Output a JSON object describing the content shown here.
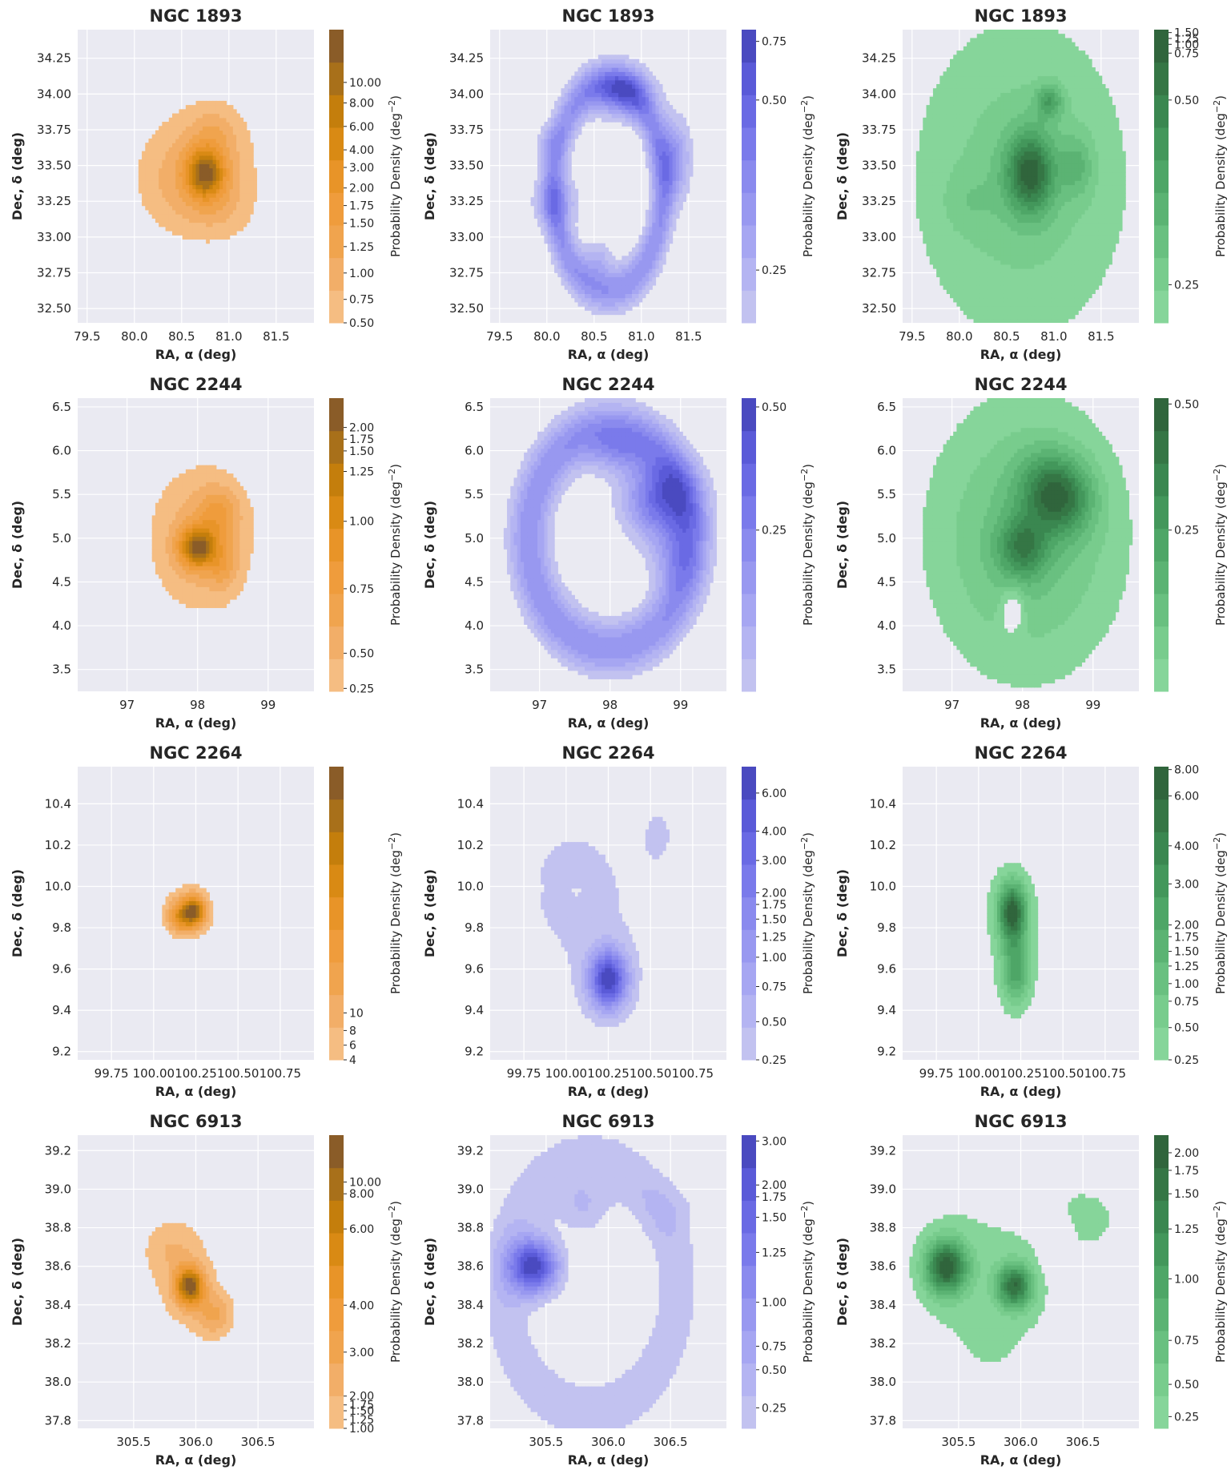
{
  "figure": {
    "colorbar_label": "Probability Density (deg$^{-2}$)",
    "colorbar_label_main": "Probability Density (deg",
    "colorbar_label_sup": "−2",
    "colorbar_label_tail": ")",
    "panel_colors": [
      "#f0a030",
      "#5858e0",
      "#3ea060"
    ]
  },
  "chart_data": [
    {
      "type": "contour",
      "title": "NGC 1893",
      "xlabel": "RA, α (deg)",
      "ylabel": "Dec, δ (deg)",
      "xlim": [
        79.4,
        81.9
      ],
      "ylim": [
        32.4,
        34.45
      ],
      "xticks": [
        "79.5",
        "80.0",
        "80.5",
        "81.0",
        "81.5"
      ],
      "xtick_values": [
        79.5,
        80.0,
        80.5,
        81.0,
        81.5
      ],
      "yticks": [
        "32.50",
        "32.75",
        "33.00",
        "33.25",
        "33.50",
        "33.75",
        "34.00",
        "34.25"
      ],
      "ytick_values": [
        32.5,
        32.75,
        33.0,
        33.25,
        33.5,
        33.75,
        34.0,
        34.25
      ],
      "palette": "orange",
      "colorbar_ticks": [
        "0.50",
        "0.75",
        "1.00",
        "1.25",
        "1.50",
        "1.75",
        "2.00",
        "3.00",
        "4.00",
        "6.00",
        "8.00",
        "10.00"
      ],
      "colorbar_positions": [
        0.0,
        0.08,
        0.17,
        0.26,
        0.34,
        0.4,
        0.46,
        0.53,
        0.59,
        0.67,
        0.75,
        0.82
      ],
      "blobs": [
        [
          80.7,
          33.45,
          0.5,
          0.38,
          0.55
        ],
        [
          80.85,
          33.6,
          0.25,
          0.25,
          0.4
        ],
        [
          80.4,
          33.4,
          0.3,
          0.25,
          0.35
        ],
        [
          80.75,
          33.45,
          0.14,
          0.12,
          2.2
        ],
        [
          80.9,
          33.2,
          0.25,
          0.15,
          0.35
        ],
        [
          80.85,
          33.75,
          0.15,
          0.1,
          0.3
        ]
      ]
    },
    {
      "type": "contour",
      "title": "NGC 1893",
      "xlabel": "RA, α (deg)",
      "ylabel": "Dec, δ (deg)",
      "xlim": [
        79.4,
        81.9
      ],
      "ylim": [
        32.4,
        34.45
      ],
      "xticks": [
        "79.5",
        "80.0",
        "80.5",
        "81.0",
        "81.5"
      ],
      "xtick_values": [
        79.5,
        80.0,
        80.5,
        81.0,
        81.5
      ],
      "yticks": [
        "32.50",
        "32.75",
        "33.00",
        "33.25",
        "33.50",
        "33.75",
        "34.00",
        "34.25"
      ],
      "ytick_values": [
        32.5,
        32.75,
        33.0,
        33.25,
        33.5,
        33.75,
        34.0,
        34.25
      ],
      "palette": "blue",
      "colorbar_ticks": [
        "0.25",
        "0.50",
        "0.75"
      ],
      "colorbar_positions": [
        0.18,
        0.76,
        0.96
      ],
      "ring": [
        80.65,
        33.35,
        0.58,
        0.72,
        0.3,
        0.35
      ],
      "blobs": [
        [
          80.8,
          34.02,
          0.22,
          0.12,
          0.35
        ],
        [
          81.35,
          33.55,
          0.12,
          0.2,
          0.3
        ],
        [
          80.1,
          33.25,
          0.18,
          0.12,
          0.2
        ],
        [
          80.55,
          32.85,
          0.1,
          0.1,
          0.15
        ],
        [
          80.0,
          33.65,
          0.1,
          0.1,
          0.12
        ]
      ]
    },
    {
      "type": "contour",
      "title": "NGC 1893",
      "xlabel": "RA, α (deg)",
      "ylabel": "Dec, δ (deg)",
      "xlim": [
        79.4,
        81.9
      ],
      "ylim": [
        32.4,
        34.45
      ],
      "xticks": [
        "79.5",
        "80.0",
        "80.5",
        "81.0",
        "81.5"
      ],
      "xtick_values": [
        79.5,
        80.0,
        80.5,
        81.0,
        81.5
      ],
      "yticks": [
        "32.50",
        "32.75",
        "33.00",
        "33.25",
        "33.50",
        "33.75",
        "34.00",
        "34.25"
      ],
      "ytick_values": [
        32.5,
        32.75,
        33.0,
        33.25,
        33.5,
        33.75,
        34.0,
        34.25
      ],
      "palette": "green",
      "colorbar_ticks": [
        "0.25",
        "0.50",
        "0.75",
        "1.00",
        "1.25",
        "1.50"
      ],
      "colorbar_positions": [
        0.13,
        0.76,
        0.92,
        0.95,
        0.97,
        0.99
      ],
      "blobs": [
        [
          80.65,
          33.4,
          0.85,
          0.85,
          0.35
        ],
        [
          80.75,
          33.45,
          0.18,
          0.2,
          0.9
        ],
        [
          80.95,
          33.95,
          0.1,
          0.08,
          0.5
        ],
        [
          81.25,
          33.5,
          0.12,
          0.15,
          0.3
        ],
        [
          80.1,
          33.25,
          0.2,
          0.15,
          0.12
        ]
      ]
    },
    {
      "type": "contour",
      "title": "NGC 2244",
      "xlabel": "RA, α (deg)",
      "ylabel": "Dec, δ (deg)",
      "xlim": [
        96.3,
        99.65
      ],
      "ylim": [
        3.25,
        6.6
      ],
      "xticks": [
        "97",
        "98",
        "99"
      ],
      "xtick_values": [
        97,
        98,
        99
      ],
      "yticks": [
        "3.5",
        "4.0",
        "4.5",
        "5.0",
        "5.5",
        "6.0",
        "6.5"
      ],
      "ytick_values": [
        3.5,
        4.0,
        4.5,
        5.0,
        5.5,
        6.0,
        6.5
      ],
      "palette": "orange",
      "colorbar_ticks": [
        "0.25",
        "0.50",
        "0.75",
        "1.00",
        "1.25",
        "1.50",
        "1.75",
        "2.00"
      ],
      "colorbar_positions": [
        0.01,
        0.13,
        0.35,
        0.58,
        0.75,
        0.82,
        0.86,
        0.9
      ],
      "blobs": [
        [
          98.05,
          5.0,
          0.55,
          0.62,
          0.55
        ],
        [
          98.0,
          4.9,
          0.18,
          0.16,
          1.4
        ],
        [
          98.3,
          5.3,
          0.2,
          0.2,
          0.5
        ],
        [
          98.35,
          4.7,
          0.15,
          0.2,
          0.4
        ]
      ]
    },
    {
      "type": "contour",
      "title": "NGC 2244",
      "xlabel": "RA, α (deg)",
      "ylabel": "Dec, δ (deg)",
      "xlim": [
        96.3,
        99.65
      ],
      "ylim": [
        3.25,
        6.6
      ],
      "xticks": [
        "97",
        "98",
        "99"
      ],
      "xtick_values": [
        97,
        98,
        99
      ],
      "yticks": [
        "3.5",
        "4.0",
        "4.5",
        "5.0",
        "5.5",
        "6.0",
        "6.5"
      ],
      "ytick_values": [
        3.5,
        4.0,
        4.5,
        5.0,
        5.5,
        6.0,
        6.5
      ],
      "palette": "blue",
      "colorbar_ticks": [
        "0.25",
        "0.50"
      ],
      "colorbar_positions": [
        0.55,
        0.97
      ],
      "ring": [
        98.0,
        5.0,
        1.15,
        1.25,
        0.35,
        0.25
      ],
      "blobs": [
        [
          98.7,
          5.45,
          0.35,
          0.3,
          0.35
        ],
        [
          98.1,
          6.0,
          0.3,
          0.2,
          0.15
        ],
        [
          98.9,
          4.8,
          0.25,
          0.3,
          0.15
        ]
      ]
    },
    {
      "type": "contour",
      "title": "NGC 2244",
      "xlabel": "RA, α (deg)",
      "ylabel": "Dec, δ (deg)",
      "xlim": [
        96.3,
        99.65
      ],
      "ylim": [
        3.25,
        6.6
      ],
      "xticks": [
        "97",
        "98",
        "99"
      ],
      "xtick_values": [
        97,
        98,
        99
      ],
      "yticks": [
        "3.5",
        "4.0",
        "4.5",
        "5.0",
        "5.5",
        "6.0",
        "6.5"
      ],
      "ytick_values": [
        3.5,
        4.0,
        4.5,
        5.0,
        5.5,
        6.0,
        6.5
      ],
      "palette": "green",
      "colorbar_ticks": [
        "0.25",
        "0.50"
      ],
      "colorbar_positions": [
        0.55,
        0.98
      ],
      "blobs": [
        [
          98.05,
          5.0,
          1.0,
          1.15,
          0.22
        ],
        [
          98.0,
          4.9,
          0.25,
          0.25,
          0.3
        ],
        [
          98.6,
          5.45,
          0.3,
          0.3,
          0.3
        ],
        [
          98.3,
          5.6,
          0.3,
          0.3,
          0.2
        ]
      ],
      "holes": [
        [
          97.85,
          4.15,
          0.18,
          0.28
        ]
      ]
    },
    {
      "type": "contour",
      "title": "NGC 2264",
      "xlabel": "RA, α (deg)",
      "ylabel": "Dec, δ (deg)",
      "xlim": [
        99.55,
        100.95
      ],
      "ylim": [
        9.16,
        10.58
      ],
      "xticks": [
        "99.75",
        "100.00",
        "100.25",
        "100.50",
        "100.75"
      ],
      "xtick_values": [
        99.75,
        100.0,
        100.25,
        100.5,
        100.75
      ],
      "yticks": [
        "9.2",
        "9.4",
        "9.6",
        "9.8",
        "10.0",
        "10.2",
        "10.4"
      ],
      "ytick_values": [
        9.2,
        9.4,
        9.6,
        9.8,
        10.0,
        10.2,
        10.4
      ],
      "palette": "orange",
      "colorbar_ticks": [
        "4",
        "6",
        "8",
        "10"
      ],
      "colorbar_positions": [
        0.0,
        0.05,
        0.1,
        0.16
      ],
      "blobs": [
        [
          100.2,
          9.88,
          0.1,
          0.1,
          4.0
        ],
        [
          100.24,
          9.88,
          0.05,
          0.05,
          12.0
        ],
        [
          100.15,
          9.85,
          0.05,
          0.05,
          6.0
        ]
      ]
    },
    {
      "type": "contour",
      "title": "NGC 2264",
      "xlabel": "RA, α (deg)",
      "ylabel": "Dec, δ (deg)",
      "xlim": [
        99.55,
        100.95
      ],
      "ylim": [
        9.16,
        10.58
      ],
      "xticks": [
        "99.75",
        "100.00",
        "100.25",
        "100.50",
        "100.75"
      ],
      "xtick_values": [
        99.75,
        100.0,
        100.25,
        100.5,
        100.75
      ],
      "yticks": [
        "9.2",
        "9.4",
        "9.6",
        "9.8",
        "10.0",
        "10.2",
        "10.4"
      ],
      "ytick_values": [
        9.2,
        9.4,
        9.6,
        9.8,
        10.0,
        10.2,
        10.4
      ],
      "palette": "blue",
      "colorbar_ticks": [
        "0.25",
        "0.50",
        "0.75",
        "1.00",
        "1.25",
        "1.50",
        "1.75",
        "2.00",
        "3.00",
        "4.00",
        "6.00"
      ],
      "colorbar_positions": [
        0.0,
        0.13,
        0.25,
        0.35,
        0.42,
        0.48,
        0.53,
        0.57,
        0.68,
        0.78,
        0.91
      ],
      "blobs": [
        [
          100.15,
          9.85,
          0.32,
          0.45,
          0.35
        ],
        [
          100.25,
          9.55,
          0.08,
          0.1,
          2.5
        ],
        [
          100.55,
          10.25,
          0.08,
          0.12,
          0.3
        ],
        [
          99.95,
          10.05,
          0.2,
          0.2,
          0.15
        ]
      ],
      "holes": [
        [
          99.84,
          9.99,
          0.02,
          0.02
        ],
        [
          100.06,
          9.98,
          0.02,
          0.02
        ]
      ]
    },
    {
      "type": "contour",
      "title": "NGC 2264",
      "xlabel": "RA, α (deg)",
      "ylabel": "Dec, δ (deg)",
      "xlim": [
        99.55,
        100.95
      ],
      "ylim": [
        9.16,
        10.58
      ],
      "xticks": [
        "99.75",
        "100.00",
        "100.25",
        "100.50",
        "100.75"
      ],
      "xtick_values": [
        99.75,
        100.0,
        100.25,
        100.5,
        100.75
      ],
      "yticks": [
        "9.2",
        "9.4",
        "9.6",
        "9.8",
        "10.0",
        "10.2",
        "10.4"
      ],
      "ytick_values": [
        9.2,
        9.4,
        9.6,
        9.8,
        10.0,
        10.2,
        10.4
      ],
      "palette": "green",
      "colorbar_ticks": [
        "0.25",
        "0.50",
        "0.75",
        "1.00",
        "1.25",
        "1.50",
        "1.75",
        "2.00",
        "3.00",
        "4.00",
        "6.00",
        "8.00"
      ],
      "colorbar_positions": [
        0.0,
        0.11,
        0.2,
        0.26,
        0.32,
        0.37,
        0.42,
        0.46,
        0.6,
        0.73,
        0.9,
        0.99
      ],
      "blobs": [
        [
          100.15,
          9.85,
          0.3,
          0.45,
          0.35
        ],
        [
          100.2,
          9.88,
          0.06,
          0.1,
          3.5
        ],
        [
          100.22,
          9.6,
          0.06,
          0.12,
          2.0
        ],
        [
          100.55,
          10.3,
          0.08,
          0.06,
          0.3
        ]
      ],
      "holes": [
        [
          99.85,
          10.0,
          0.04,
          0.06
        ]
      ]
    },
    {
      "type": "contour",
      "title": "NGC 6913",
      "xlabel": "RA, α (deg)",
      "ylabel": "Dec, δ (deg)",
      "xlim": [
        305.05,
        306.95
      ],
      "ylim": [
        37.76,
        39.28
      ],
      "xticks": [
        "305.5",
        "306.0",
        "306.5"
      ],
      "xtick_values": [
        305.5,
        306.0,
        306.5
      ],
      "yticks": [
        "37.8",
        "38.0",
        "38.2",
        "38.4",
        "38.6",
        "38.8",
        "39.0",
        "39.2"
      ],
      "ytick_values": [
        37.8,
        38.0,
        38.2,
        38.4,
        38.6,
        38.8,
        39.0,
        39.2
      ],
      "palette": "orange",
      "colorbar_ticks": [
        "1.00",
        "1.25",
        "1.50",
        "1.75",
        "2.00",
        "3.00",
        "4.00",
        "6.00",
        "8.00",
        "10.00"
      ],
      "colorbar_positions": [
        0.0,
        0.03,
        0.06,
        0.08,
        0.11,
        0.26,
        0.42,
        0.68,
        0.8,
        0.84
      ],
      "blobs": [
        [
          305.9,
          38.5,
          0.3,
          0.28,
          1.5
        ],
        [
          305.95,
          38.5,
          0.08,
          0.07,
          10.0
        ],
        [
          306.15,
          38.35,
          0.1,
          0.08,
          3.0
        ],
        [
          305.8,
          38.7,
          0.15,
          0.1,
          1.5
        ]
      ]
    },
    {
      "type": "contour",
      "title": "NGC 6913",
      "xlabel": "RA, α (deg)",
      "ylabel": "Dec, δ (deg)",
      "xlim": [
        305.05,
        306.95
      ],
      "ylim": [
        37.76,
        39.28
      ],
      "xticks": [
        "305.5",
        "306.0",
        "306.5"
      ],
      "xtick_values": [
        305.5,
        306.0,
        306.5
      ],
      "yticks": [
        "37.8",
        "38.0",
        "38.2",
        "38.4",
        "38.6",
        "38.8",
        "39.0",
        "39.2"
      ],
      "ytick_values": [
        37.8,
        38.0,
        38.2,
        38.4,
        38.6,
        38.8,
        39.0,
        39.2
      ],
      "palette": "blue",
      "colorbar_ticks": [
        "0.25",
        "0.50",
        "0.75",
        "1.00",
        "1.25",
        "1.50",
        "1.75",
        "2.00",
        "3.00"
      ],
      "colorbar_positions": [
        0.07,
        0.2,
        0.28,
        0.43,
        0.6,
        0.72,
        0.79,
        0.83,
        0.98
      ],
      "ring": [
        305.85,
        38.5,
        0.7,
        0.65,
        0.4,
        0.5
      ],
      "blobs": [
        [
          305.4,
          38.6,
          0.14,
          0.1,
          2.5
        ],
        [
          305.8,
          38.9,
          0.15,
          0.1,
          0.5
        ],
        [
          306.5,
          38.9,
          0.2,
          0.1,
          0.2
        ]
      ]
    },
    {
      "type": "contour",
      "title": "NGC 6913",
      "xlabel": "RA, α (deg)",
      "ylabel": "Dec, δ (deg)",
      "xlim": [
        305.05,
        306.95
      ],
      "ylim": [
        37.76,
        39.28
      ],
      "xticks": [
        "305.5",
        "306.0",
        "306.5"
      ],
      "xtick_values": [
        305.5,
        306.0,
        306.5
      ],
      "yticks": [
        "37.8",
        "38.0",
        "38.2",
        "38.4",
        "38.6",
        "38.8",
        "39.0",
        "39.2"
      ],
      "ytick_values": [
        37.8,
        38.0,
        38.2,
        38.4,
        38.6,
        38.8,
        39.0,
        39.2
      ],
      "palette": "green",
      "colorbar_ticks": [
        "0.25",
        "0.50",
        "0.75",
        "1.00",
        "1.25",
        "1.50",
        "1.75",
        "2.00"
      ],
      "colorbar_positions": [
        0.04,
        0.15,
        0.3,
        0.51,
        0.68,
        0.8,
        0.88,
        0.94
      ],
      "blobs": [
        [
          305.75,
          38.45,
          0.55,
          0.62,
          0.25
        ],
        [
          305.4,
          38.6,
          0.12,
          0.1,
          1.6
        ],
        [
          305.95,
          38.5,
          0.1,
          0.08,
          1.4
        ],
        [
          306.5,
          38.85,
          0.2,
          0.1,
          0.3
        ]
      ],
      "holes": [
        [
          306.3,
          38.75,
          0.15,
          0.2
        ]
      ]
    }
  ]
}
